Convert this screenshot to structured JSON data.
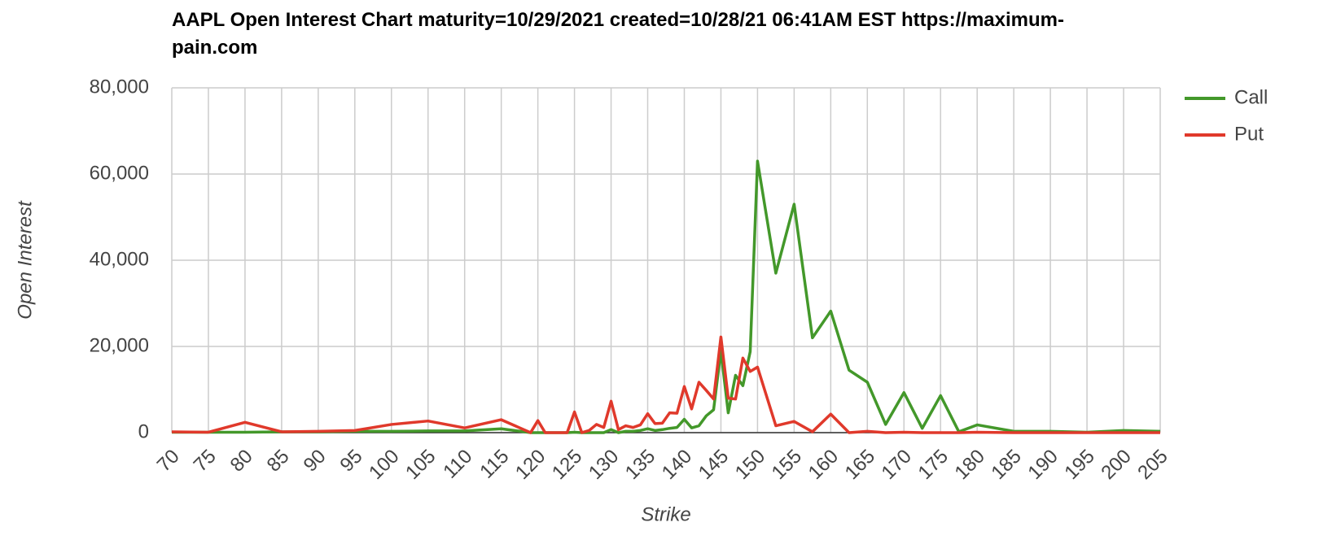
{
  "chart_data": {
    "type": "line",
    "title": "AAPL Open Interest Chart maturity=10/29/2021 created=10/28/21 06:41AM EST https://maximum-pain.com",
    "x_label": "Strike",
    "y_label": "Open Interest",
    "x": [
      70,
      75,
      80,
      85,
      90,
      95,
      100,
      105,
      110,
      115,
      119,
      120,
      121,
      122,
      123,
      124,
      125,
      126,
      127,
      128,
      129,
      130,
      131,
      132,
      133,
      134,
      135,
      136,
      137,
      138,
      139,
      140,
      141,
      142,
      143,
      144,
      145,
      146,
      147,
      148,
      149,
      150,
      152.5,
      155,
      157.5,
      160,
      162.5,
      165,
      167.5,
      170,
      172.5,
      175,
      177.5,
      180,
      185,
      190,
      195,
      200,
      205
    ],
    "series": [
      {
        "name": "Call",
        "color": "#43982a",
        "values": [
          100,
          100,
          100,
          200,
          200,
          300,
          300,
          400,
          400,
          900,
          0,
          0,
          0,
          0,
          0,
          0,
          100,
          0,
          0,
          0,
          0,
          700,
          0,
          300,
          300,
          500,
          900,
          500,
          700,
          1000,
          1200,
          3100,
          1100,
          1600,
          3900,
          5300,
          19000,
          4600,
          13300,
          10900,
          18800,
          63000,
          37000,
          53000,
          22000,
          28200,
          14500,
          11700,
          1900,
          9300,
          1000,
          8600,
          200,
          1800,
          300,
          300,
          100,
          500,
          300
        ]
      },
      {
        "name": "Put",
        "color": "#e0392b",
        "values": [
          200,
          100,
          2400,
          200,
          300,
          500,
          1900,
          2700,
          1100,
          3000,
          0,
          2800,
          0,
          0,
          0,
          0,
          4800,
          0,
          500,
          1900,
          1200,
          7300,
          700,
          1600,
          1200,
          1800,
          4400,
          2100,
          2200,
          4600,
          4500,
          10700,
          5500,
          11700,
          9800,
          7800,
          22200,
          8000,
          7800,
          17300,
          14200,
          15200,
          1600,
          2600,
          200,
          4300,
          0,
          300,
          0,
          100,
          0,
          0,
          0,
          100,
          0,
          0,
          0,
          0,
          0
        ]
      }
    ],
    "xlim": [
      70,
      205
    ],
    "xticks": [
      70,
      75,
      80,
      85,
      90,
      95,
      100,
      105,
      110,
      115,
      120,
      125,
      130,
      135,
      140,
      145,
      150,
      155,
      160,
      165,
      170,
      175,
      180,
      185,
      190,
      195,
      200,
      205
    ],
    "ylim": [
      0,
      80000
    ],
    "yticks": [
      0,
      {
        "value": 20000,
        "label": "20,000"
      },
      {
        "value": 40000,
        "label": "40,000"
      },
      {
        "value": 60000,
        "label": "60,000"
      },
      {
        "value": 80000,
        "label": "80,000"
      }
    ],
    "grid": true,
    "legend": "right"
  }
}
